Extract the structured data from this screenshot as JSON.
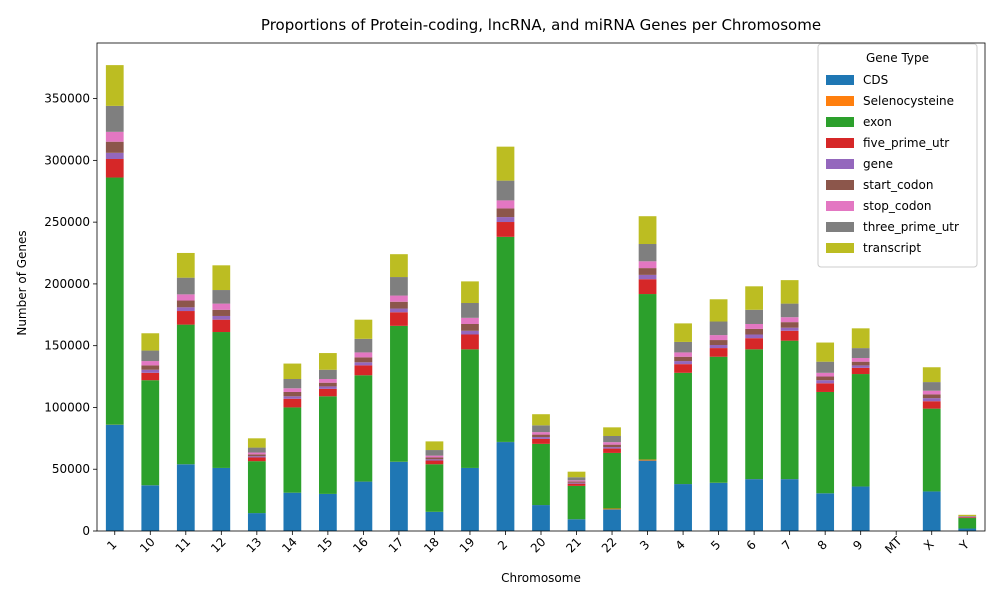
{
  "chart_data": {
    "type": "bar",
    "stacked": true,
    "title": "Proportions of Protein-coding, lncRNA, and miRNA Genes per Chromosome",
    "xlabel": "Chromosome",
    "ylabel": "Number of Genes",
    "ylim": [
      0,
      395000
    ],
    "yticks": [
      0,
      50000,
      100000,
      150000,
      200000,
      250000,
      300000,
      350000
    ],
    "grid": false,
    "legend": {
      "title": "Gene Type",
      "placement": "top-right"
    },
    "categories": [
      "1",
      "10",
      "11",
      "12",
      "13",
      "14",
      "15",
      "16",
      "17",
      "18",
      "19",
      "2",
      "20",
      "21",
      "22",
      "3",
      "4",
      "5",
      "6",
      "7",
      "8",
      "9",
      "MT",
      "X",
      "Y"
    ],
    "series": [
      {
        "name": "CDS",
        "color": "#1f77b4",
        "values": [
          86000,
          37000,
          54000,
          51000,
          14500,
          31000,
          30000,
          40000,
          56000,
          15500,
          51000,
          72000,
          21000,
          9500,
          17500,
          57000,
          38000,
          39000,
          42000,
          42000,
          30500,
          36000,
          0,
          32000,
          2000
        ]
      },
      {
        "name": "Selenocysteine",
        "color": "#ff7f0e",
        "values": [
          100,
          50,
          50,
          50,
          20,
          30,
          30,
          50,
          60,
          30,
          50,
          100,
          30,
          20,
          700,
          800,
          50,
          60,
          60,
          60,
          40,
          40,
          0,
          40,
          0
        ]
      },
      {
        "name": "exon",
        "color": "#2ca02c",
        "values": [
          200000,
          85000,
          113000,
          110000,
          42000,
          69000,
          79000,
          86000,
          110000,
          38500,
          96000,
          166000,
          49500,
          27000,
          45000,
          134000,
          90000,
          102000,
          105000,
          112000,
          82000,
          91000,
          0,
          67000,
          8500
        ]
      },
      {
        "name": "five_prime_utr",
        "color": "#d62728",
        "values": [
          15000,
          6000,
          11000,
          10000,
          3000,
          7000,
          6000,
          8000,
          11000,
          3000,
          12000,
          12000,
          4000,
          1800,
          3500,
          12000,
          7000,
          7000,
          9000,
          8000,
          7000,
          5000,
          0,
          6000,
          500
        ]
      },
      {
        "name": "gene",
        "color": "#9467bd",
        "values": [
          5000,
          2500,
          3000,
          3000,
          1000,
          2000,
          2000,
          2500,
          3000,
          1000,
          3000,
          4000,
          1500,
          700,
          1200,
          3500,
          2500,
          2500,
          3000,
          2500,
          2500,
          2000,
          0,
          2500,
          200
        ]
      },
      {
        "name": "start_codon",
        "color": "#8c564b",
        "values": [
          9000,
          3500,
          5500,
          5000,
          1500,
          3500,
          3000,
          4000,
          5500,
          1500,
          5500,
          7000,
          2000,
          1000,
          2000,
          5500,
          3500,
          4000,
          4500,
          4500,
          3000,
          3000,
          0,
          3000,
          200
        ]
      },
      {
        "name": "stop_codon",
        "color": "#e377c2",
        "values": [
          8000,
          3500,
          5000,
          5000,
          1500,
          3000,
          3000,
          4000,
          5000,
          1500,
          5000,
          6500,
          2000,
          1000,
          2000,
          5500,
          3500,
          4000,
          4000,
          4000,
          3000,
          3000,
          0,
          3000,
          200
        ]
      },
      {
        "name": "three_prime_utr",
        "color": "#7f7f7f",
        "values": [
          21000,
          8500,
          13500,
          11000,
          4000,
          7500,
          7500,
          11000,
          15000,
          4500,
          12000,
          16000,
          5500,
          2500,
          5000,
          14000,
          8500,
          11000,
          11500,
          11000,
          9000,
          8000,
          0,
          7000,
          500
        ]
      },
      {
        "name": "transcript",
        "color": "#bcbd22",
        "values": [
          33000,
          14000,
          20000,
          20000,
          7500,
          12500,
          13500,
          15500,
          18500,
          7000,
          17500,
          27500,
          9000,
          4500,
          7000,
          22500,
          15000,
          18000,
          19000,
          19000,
          15500,
          16000,
          0,
          12000,
          1000
        ]
      }
    ]
  }
}
